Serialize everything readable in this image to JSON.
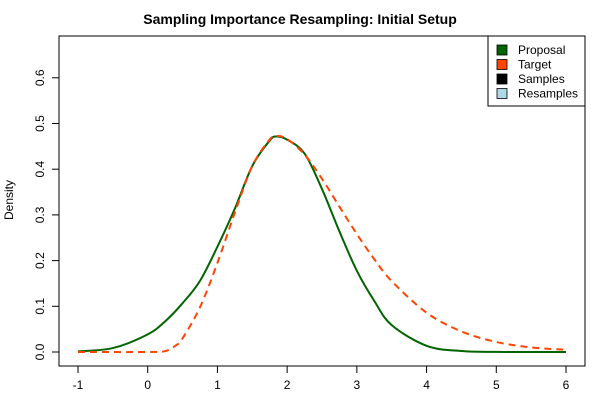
{
  "chart_data": {
    "type": "line",
    "title": "Sampling Importance Resampling: Initial Setup",
    "xlabel": "",
    "ylabel": "Density",
    "xlim": [
      -1,
      6
    ],
    "ylim": [
      0,
      0.65
    ],
    "x_ticks": [
      "-1",
      "0",
      "1",
      "2",
      "3",
      "4",
      "5",
      "6"
    ],
    "x_tick_values": [
      -1,
      0,
      1,
      2,
      3,
      4,
      5,
      6
    ],
    "y_ticks": [
      "0.0",
      "0.1",
      "0.2",
      "0.3",
      "0.4",
      "0.5",
      "0.6"
    ],
    "y_tick_values": [
      0,
      0.1,
      0.2,
      0.3,
      0.4,
      0.5,
      0.6
    ],
    "grid": false,
    "legend_position": "top-right",
    "legend": [
      {
        "label": "Proposal",
        "color": "#006400"
      },
      {
        "label": "Target",
        "color": "#FF4500"
      },
      {
        "label": "Samples",
        "color": "#000000"
      },
      {
        "label": "Resamples",
        "color": "#ADD8E6"
      }
    ],
    "series": [
      {
        "name": "Proposal",
        "color": "#006400",
        "dash": "solid",
        "x": [
          -1,
          -0.5,
          0,
          0.25,
          0.5,
          0.75,
          1,
          1.25,
          1.5,
          1.75,
          1.85,
          2,
          2.25,
          2.5,
          2.75,
          3,
          3.25,
          3.5,
          4,
          4.5,
          5,
          5.5,
          6
        ],
        "y": [
          0.0014,
          0.0086,
          0.0386,
          0.0671,
          0.1068,
          0.1557,
          0.2305,
          0.3137,
          0.4072,
          0.4627,
          0.4716,
          0.4646,
          0.4342,
          0.3566,
          0.2638,
          0.1777,
          0.1117,
          0.0587,
          0.0136,
          0.0021,
          0.0002,
          1e-05,
          0
        ]
      },
      {
        "name": "Target",
        "color": "#FF4500",
        "dash": "dashed",
        "x": [
          -1,
          0,
          0.25,
          0.4,
          0.5,
          0.75,
          1,
          1.25,
          1.5,
          1.75,
          1.85,
          2,
          2.25,
          2.5,
          2.75,
          3,
          3.25,
          3.5,
          4,
          4.5,
          5,
          5.5,
          6
        ],
        "y": [
          0,
          0,
          0.002,
          0.014,
          0.03,
          0.098,
          0.195,
          0.305,
          0.407,
          0.465,
          0.473,
          0.466,
          0.432,
          0.379,
          0.318,
          0.258,
          0.203,
          0.155,
          0.086,
          0.045,
          0.022,
          0.01,
          0.005
        ]
      }
    ]
  }
}
